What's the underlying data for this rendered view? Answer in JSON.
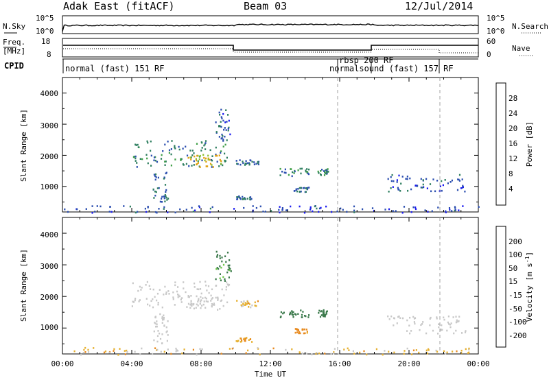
{
  "header": {
    "station": "Adak East (fitACF)",
    "beam": "Beam 03",
    "date": "12/Jul/2014"
  },
  "noise_panel": {
    "left_label": "N.Sky",
    "right_label": "N.Search",
    "left_ticks": [
      "10^5",
      "10^0"
    ],
    "right_ticks": [
      "10^5",
      "10^0"
    ]
  },
  "freq_panel": {
    "left_label_1": "Freq.",
    "left_label_2": "[MHz]",
    "right_label": "Nave",
    "left_ticks": [
      "18",
      "8"
    ],
    "right_ticks": [
      "60",
      "0"
    ]
  },
  "cpid_panel": {
    "label": "CPID",
    "programs": [
      {
        "name": "normal (fast) 151 RF",
        "start_hour": 0,
        "end_hour": 16
      },
      {
        "name": "rbsp 200 RF",
        "start_hour": 16,
        "end_hour": 18
      },
      {
        "name": "normalsound (fast) 157 RF",
        "start_hour": 18,
        "end_hour": 22
      }
    ]
  },
  "x_axis": {
    "label": "Time UT",
    "ticks": [
      "00:00",
      "04:00",
      "08:00",
      "12:00",
      "16:00",
      "20:00",
      "00:00"
    ]
  },
  "power_panel": {
    "ylabel": "Slant Range [km]",
    "yticks": [
      "1000",
      "2000",
      "3000",
      "4000"
    ],
    "colorbar_label": "Power [dB]",
    "colorbar_ticks": [
      "4",
      "8",
      "12",
      "16",
      "20",
      "24",
      "28"
    ]
  },
  "velocity_panel": {
    "ylabel": "Slant Range [km]",
    "yticks": [
      "1000",
      "2000",
      "3000",
      "4000"
    ],
    "colorbar_label": "Velocity [m s",
    "colorbar_label_sup": "-1",
    "colorbar_label_end": "]",
    "colorbar_ticks": [
      "200",
      "100",
      "50",
      "15",
      "-15",
      "-50",
      "-100",
      "-200"
    ]
  },
  "colors": {
    "power_scale": [
      "#1c1cf0",
      "#2c4fb0",
      "#2f7f60",
      "#40a048",
      "#8fc030",
      "#e0a010",
      "#e86820",
      "#e02010"
    ],
    "velocity_scale": [
      "#223d9a",
      "#2b5ea0",
      "#3c7a4c",
      "#6fc84a",
      "#c8c8c8",
      "#e6b030",
      "#e88a20",
      "#e85020",
      "#e01010"
    ],
    "line": "#000000",
    "dashed_marker": "#a0a0a0"
  },
  "chart_data": {
    "type": "heatmap",
    "x_range_hours": [
      0,
      24
    ],
    "y_range_km": [
      180,
      4500
    ],
    "markers_hours": [
      16,
      22
    ],
    "scatter_regions": [
      {
        "t0": 3.9,
        "t1": 9.6,
        "r0": 1650,
        "r1": 2500,
        "power": 10,
        "velocity": 0
      },
      {
        "t0": 7.2,
        "t1": 9.2,
        "r0": 1600,
        "r1": 2050,
        "power": 20,
        "velocity": 0
      },
      {
        "t0": 5.2,
        "t1": 6.1,
        "r0": 500,
        "r1": 1500,
        "power": 8,
        "velocity": 0
      },
      {
        "t0": 8.8,
        "t1": 9.7,
        "r0": 2500,
        "r1": 3500,
        "power": 6,
        "velocity": 40
      },
      {
        "t0": 10.0,
        "t1": 11.3,
        "r0": 1680,
        "r1": 1900,
        "power": 8,
        "velocity": -20
      },
      {
        "t0": 10.0,
        "t1": 10.9,
        "r0": 580,
        "r1": 720,
        "power": 8,
        "velocity": -30
      },
      {
        "t0": 12.5,
        "t1": 14.2,
        "r0": 1350,
        "r1": 1600,
        "power": 9,
        "velocity": 50
      },
      {
        "t0": 13.3,
        "t1": 14.2,
        "r0": 850,
        "r1": 1000,
        "power": 8,
        "velocity": -40
      },
      {
        "t0": 14.7,
        "t1": 15.3,
        "r0": 1380,
        "r1": 1600,
        "power": 10,
        "velocity": 50
      },
      {
        "t0": 18.7,
        "t1": 23.3,
        "r0": 850,
        "r1": 1400,
        "power": 6,
        "velocity": 0
      },
      {
        "t0": 0.0,
        "t1": 24.0,
        "r0": 180,
        "r1": 400,
        "power": 5,
        "velocity": -20
      }
    ]
  }
}
